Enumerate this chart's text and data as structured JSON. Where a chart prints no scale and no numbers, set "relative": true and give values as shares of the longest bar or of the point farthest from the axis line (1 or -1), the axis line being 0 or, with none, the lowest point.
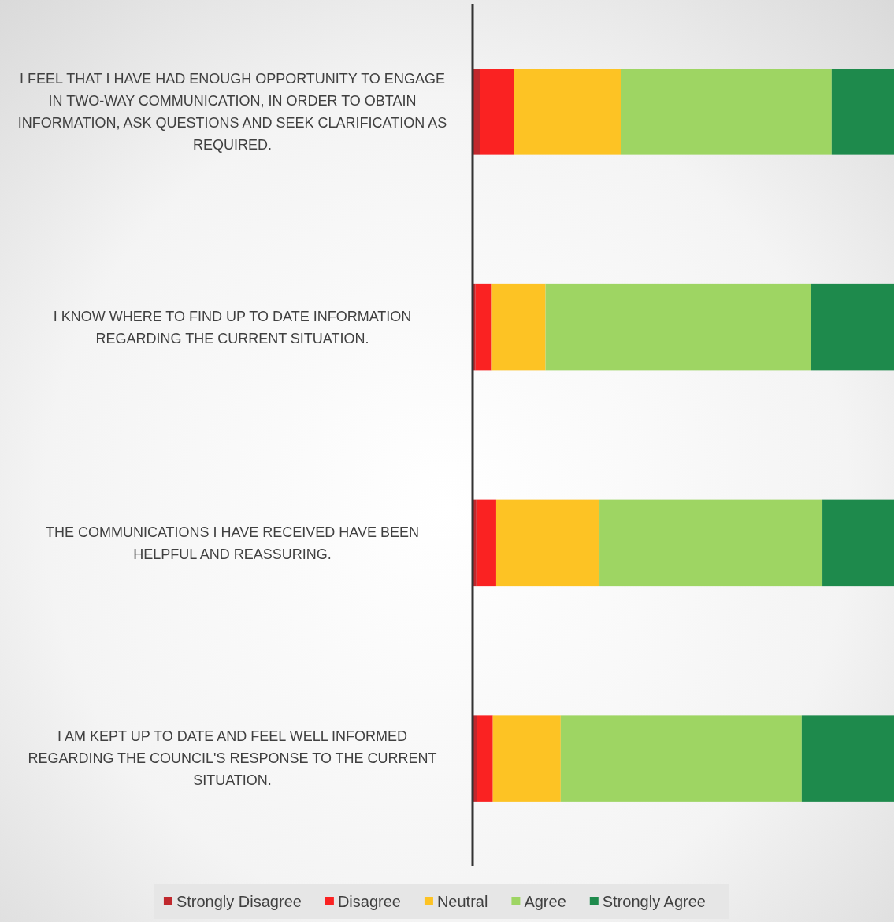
{
  "chart_data": {
    "type": "bar",
    "orientation": "horizontal",
    "stacked": true,
    "relative": true,
    "legend": "bottom",
    "categories": [
      "I FEEL THAT I HAVE HAD ENOUGH OPPORTUNITY TO ENGAGE IN TWO-WAY COMMUNICATION, IN ORDER TO OBTAIN INFORMATION, ASK QUESTIONS AND SEEK CLARIFICATION AS REQUIRED.",
      "I KNOW WHERE TO FIND UP TO DATE INFORMATION REGARDING THE CURRENT SITUATION.",
      "THE COMMUNICATIONS I HAVE RECEIVED HAVE BEEN HELPFUL AND REASSURING.",
      "I AM KEPT UP TO DATE AND FEEL WELL INFORMED REGARDING THE COUNCIL'S RESPONSE TO THE CURRENT SITUATION."
    ],
    "series": [
      {
        "name": "Strongly Disagree",
        "color": "#c0282d",
        "values": [
          0.017,
          0.007,
          0.009,
          0.011
        ]
      },
      {
        "name": "Disagree",
        "color": "#fa2222",
        "values": [
          0.082,
          0.037,
          0.047,
          0.037
        ]
      },
      {
        "name": "Neutral",
        "color": "#fdc324",
        "values": [
          0.254,
          0.129,
          0.245,
          0.161
        ]
      },
      {
        "name": "Agree",
        "color": "#9ed563",
        "values": [
          0.499,
          0.63,
          0.529,
          0.572
        ]
      },
      {
        "name": "Strongly Agree",
        "color": "#1e8a4c",
        "values": [
          0.148,
          0.197,
          0.17,
          0.219
        ]
      }
    ]
  }
}
